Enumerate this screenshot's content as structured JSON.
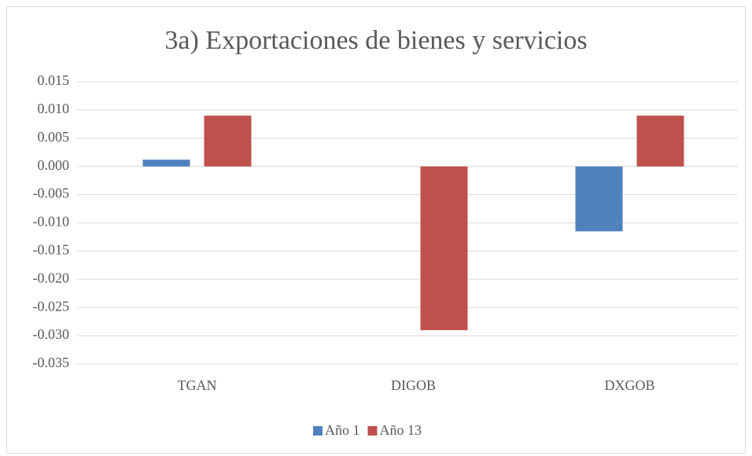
{
  "chart_data": {
    "type": "bar",
    "title": "3a) Exportaciones de bienes y servicios",
    "categories": [
      "TGAN",
      "DIGOB",
      "DXGOB"
    ],
    "series": [
      {
        "name": "Año 1",
        "color": "#4f81bd",
        "values": [
          0.0012,
          0,
          -0.0115
        ]
      },
      {
        "name": "Año 13",
        "color": "#c0504d",
        "values": [
          0.009,
          -0.029,
          0.009
        ]
      }
    ],
    "ylim": [
      -0.035,
      0.015
    ],
    "yticks": [
      0.015,
      {
        "value": 0.01,
        "label": "0.010"
      },
      0.005,
      {
        "value": 0,
        "label": "0.000"
      },
      -0.005,
      {
        "value": -0.01,
        "label": "-0.010"
      },
      -0.015,
      {
        "value": -0.02,
        "label": "-0.020"
      },
      -0.025,
      {
        "value": -0.03,
        "label": "-0.030"
      },
      -0.035
    ],
    "grid": true,
    "legend": "bottom"
  }
}
